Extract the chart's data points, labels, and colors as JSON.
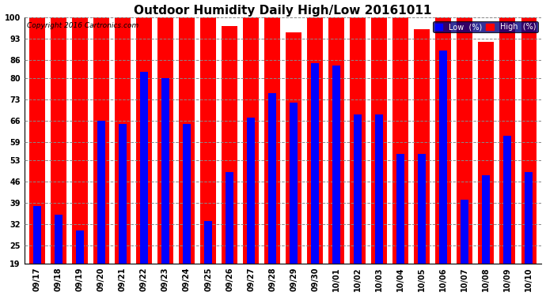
{
  "title": "Outdoor Humidity Daily High/Low 20161011",
  "copyright": "Copyright 2016 Cartronics.com",
  "dates": [
    "09/17",
    "09/18",
    "09/19",
    "09/20",
    "09/21",
    "09/22",
    "09/23",
    "09/24",
    "09/25",
    "09/26",
    "09/27",
    "09/28",
    "09/29",
    "09/30",
    "10/01",
    "10/02",
    "10/03",
    "10/04",
    "10/05",
    "10/06",
    "10/07",
    "10/08",
    "10/09",
    "10/10"
  ],
  "high": [
    100,
    100,
    100,
    100,
    100,
    100,
    100,
    100,
    100,
    97,
    100,
    100,
    95,
    100,
    100,
    100,
    100,
    100,
    96,
    100,
    100,
    92,
    100,
    100
  ],
  "low": [
    38,
    35,
    30,
    66,
    65,
    82,
    80,
    65,
    33,
    49,
    67,
    75,
    72,
    85,
    84,
    68,
    68,
    55,
    55,
    89,
    40,
    48,
    61,
    49
  ],
  "ylim_min": 19,
  "ylim_max": 100,
  "yticks": [
    19,
    25,
    32,
    39,
    46,
    53,
    59,
    66,
    73,
    80,
    86,
    93,
    100
  ],
  "high_color": "#ff0000",
  "low_color": "#0000ff",
  "background_color": "#ffffff",
  "grid_color": "#888888",
  "title_fontsize": 11,
  "tick_fontsize": 7,
  "legend_low_label": "Low  (%)",
  "legend_high_label": "High  (%)"
}
